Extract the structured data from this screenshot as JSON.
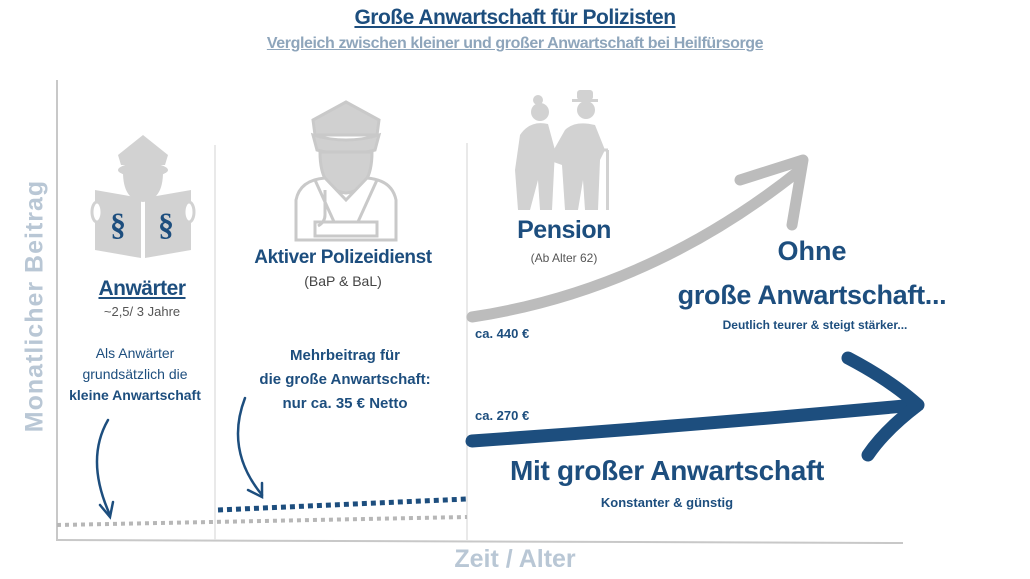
{
  "header": {
    "title": "Große Anwartschaft für Polizisten",
    "subtitle": "Vergleich zwischen kleiner und großer Anwartschaft bei Heilfürsorge"
  },
  "axes": {
    "y_label": "Monatlicher Beitrag",
    "x_label": "Zeit / Alter"
  },
  "phases": {
    "anwaerter": {
      "title": "Anwärter",
      "duration": "~2,5/ 3 Jahre",
      "note_lines": [
        "Als Anwärter",
        "grundsätzlich die",
        "kleine Anwartschaft"
      ],
      "icon": "student-police-reading-law-book-icon"
    },
    "aktiv": {
      "title": "Aktiver Polizeidienst",
      "subtitle": "(BaP & BaL)",
      "note_lines": [
        "Mehrbeitrag für",
        "die große Anwartschaft:",
        "nur ca. 35 € Netto"
      ],
      "icon": "police-officer-icon"
    },
    "pension": {
      "title": "Pension",
      "subtitle": "(Ab Alter 62)",
      "icon": "elderly-couple-icon"
    }
  },
  "scenarios": {
    "ohne": {
      "title_line1": "Ohne",
      "title_line2": "große Anwartschaft...",
      "description": "Deutlich teurer & steigt stärker...",
      "price": "ca. 440 €",
      "color": "#bdbdbd"
    },
    "mit": {
      "title": "Mit großer Anwartschaft",
      "description": "Konstanter & günstig",
      "price": "ca. 270 €",
      "color": "#1d4e7e"
    }
  },
  "colors": {
    "primary": "#1d4e7e",
    "axis_label": "#b9c7d5",
    "icon_grey": "#d0d0d0"
  }
}
